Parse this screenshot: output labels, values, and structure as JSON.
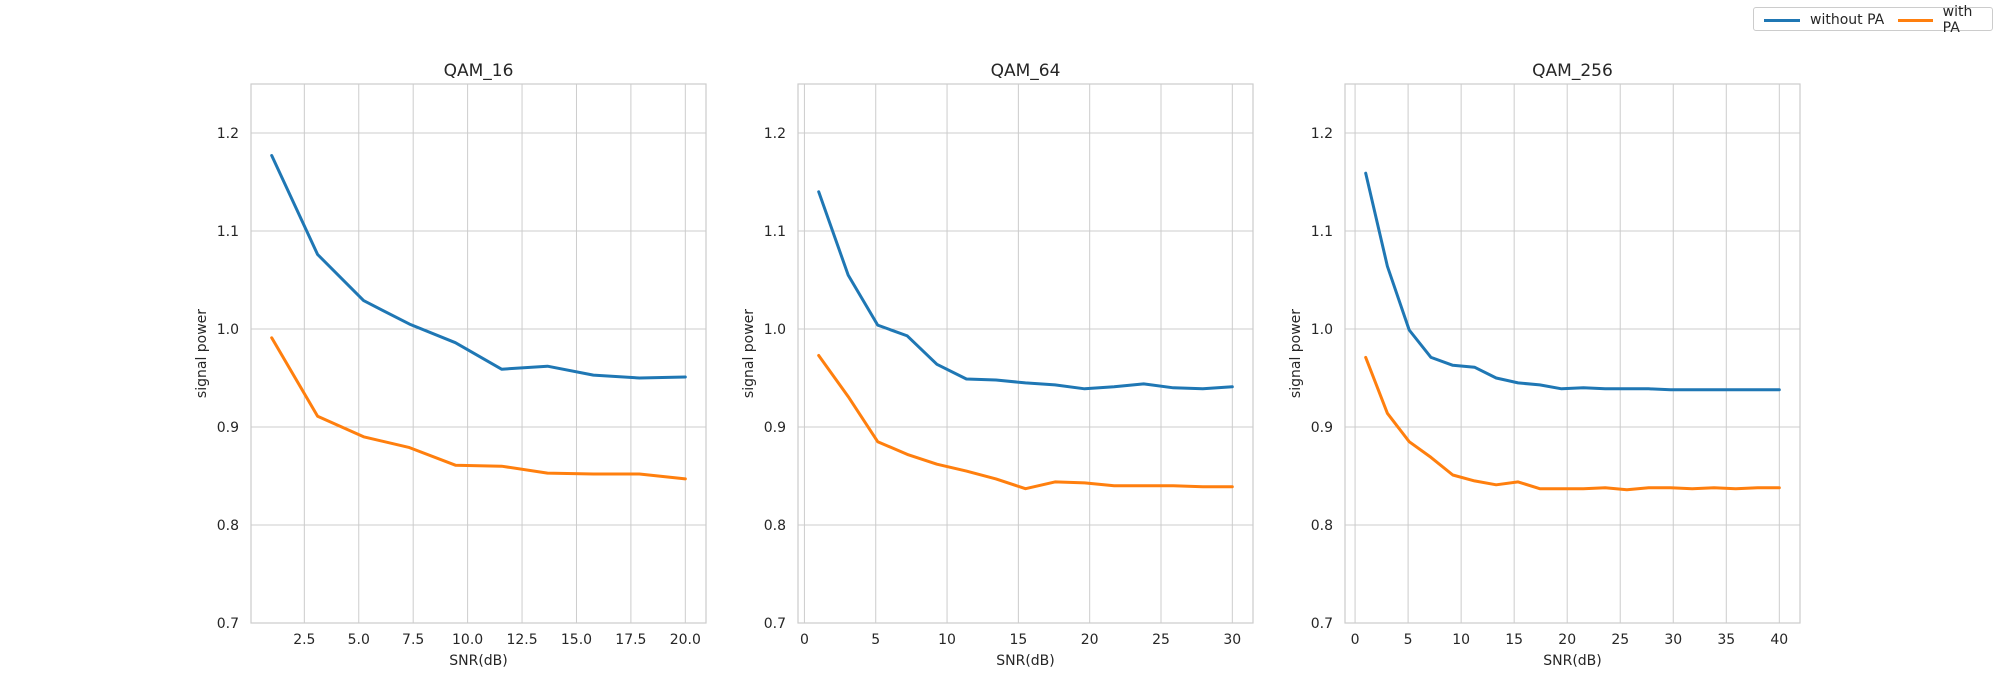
{
  "colors": {
    "without_pa": "#1f77b4",
    "with_pa": "#ff7f0e",
    "grid": "#cccccc",
    "text": "#262626"
  },
  "legend": {
    "placement": "top-right",
    "items": [
      {
        "label": "without PA",
        "color": "#1f77b4"
      },
      {
        "label": "with PA",
        "color": "#ff7f0e"
      }
    ]
  },
  "chart_data": [
    {
      "type": "line",
      "title": "QAM_16",
      "xlabel": "SNR(dB)",
      "ylabel": "signal power",
      "xlim": [
        0.05,
        20.95
      ],
      "ylim": [
        0.7,
        1.25
      ],
      "xticks": [
        2.5,
        5.0,
        7.5,
        10.0,
        12.5,
        15.0,
        17.5,
        20.0
      ],
      "xtick_labels": [
        "2.5",
        "5.0",
        "7.5",
        "10.0",
        "12.5",
        "15.0",
        "17.5",
        "20.0"
      ],
      "yticks": [
        0.7,
        0.8,
        0.9,
        1.0,
        1.1,
        1.2
      ],
      "ytick_labels": [
        "0.7",
        "0.8",
        "0.9",
        "1.0",
        "1.1",
        "1.2"
      ],
      "grid": true,
      "x": [
        1,
        3.11,
        5.22,
        7.33,
        9.44,
        11.56,
        13.67,
        15.78,
        17.89,
        20
      ],
      "series": [
        {
          "name": "without PA",
          "color": "#1f77b4",
          "values": [
            1.177,
            1.076,
            1.029,
            1.005,
            0.986,
            0.959,
            0.962,
            0.953,
            0.95,
            0.951
          ]
        },
        {
          "name": "with PA",
          "color": "#ff7f0e",
          "values": [
            0.991,
            0.911,
            0.89,
            0.879,
            0.861,
            0.86,
            0.853,
            0.852,
            0.852,
            0.847
          ]
        }
      ]
    },
    {
      "type": "line",
      "title": "QAM_64",
      "xlabel": "SNR(dB)",
      "ylabel": "signal power",
      "xlim": [
        -0.45,
        31.45
      ],
      "ylim": [
        0.7,
        1.25
      ],
      "xticks": [
        0,
        5,
        10,
        15,
        20,
        25,
        30
      ],
      "xtick_labels": [
        "0",
        "5",
        "10",
        "15",
        "20",
        "25",
        "30"
      ],
      "yticks": [
        0.7,
        0.8,
        0.9,
        1.0,
        1.1,
        1.2
      ],
      "ytick_labels": [
        "0.7",
        "0.8",
        "0.9",
        "1.0",
        "1.1",
        "1.2"
      ],
      "grid": true,
      "x": [
        1,
        3.07,
        5.14,
        7.21,
        9.29,
        11.36,
        13.43,
        15.5,
        17.57,
        19.64,
        21.71,
        23.79,
        25.86,
        27.93,
        30
      ],
      "series": [
        {
          "name": "without PA",
          "color": "#1f77b4",
          "values": [
            1.14,
            1.055,
            1.004,
            0.993,
            0.964,
            0.949,
            0.948,
            0.945,
            0.943,
            0.939,
            0.941,
            0.944,
            0.94,
            0.939,
            0.941
          ]
        },
        {
          "name": "with PA",
          "color": "#ff7f0e",
          "values": [
            0.973,
            0.931,
            0.885,
            0.872,
            0.862,
            0.855,
            0.847,
            0.837,
            0.844,
            0.843,
            0.84,
            0.84,
            0.84,
            0.839,
            0.839
          ]
        }
      ]
    },
    {
      "type": "line",
      "title": "QAM_256",
      "xlabel": "SNR(dB)",
      "ylabel": "signal power",
      "xlim": [
        -0.95,
        41.95
      ],
      "ylim": [
        0.7,
        1.25
      ],
      "xticks": [
        0,
        5,
        10,
        15,
        20,
        25,
        30,
        35,
        40
      ],
      "xtick_labels": [
        "0",
        "5",
        "10",
        "15",
        "20",
        "25",
        "30",
        "35",
        "40"
      ],
      "yticks": [
        0.7,
        0.8,
        0.9,
        1.0,
        1.1,
        1.2
      ],
      "ytick_labels": [
        "0.7",
        "0.8",
        "0.9",
        "1.0",
        "1.1",
        "1.2"
      ],
      "grid": true,
      "x": [
        1,
        3.05,
        5.1,
        7.16,
        9.21,
        11.26,
        13.31,
        15.37,
        17.42,
        19.47,
        21.53,
        23.58,
        25.63,
        27.68,
        29.74,
        31.79,
        33.84,
        35.89,
        37.95,
        40
      ],
      "series": [
        {
          "name": "without PA",
          "color": "#1f77b4",
          "values": [
            1.159,
            1.064,
            0.999,
            0.971,
            0.963,
            0.961,
            0.95,
            0.945,
            0.943,
            0.939,
            0.94,
            0.939,
            0.939,
            0.939,
            0.938,
            0.938,
            0.938,
            0.938,
            0.938,
            0.938
          ]
        },
        {
          "name": "with PA",
          "color": "#ff7f0e",
          "values": [
            0.971,
            0.914,
            0.885,
            0.869,
            0.851,
            0.845,
            0.841,
            0.844,
            0.837,
            0.837,
            0.837,
            0.838,
            0.836,
            0.838,
            0.838,
            0.837,
            0.838,
            0.837,
            0.838,
            0.838
          ]
        }
      ]
    }
  ]
}
